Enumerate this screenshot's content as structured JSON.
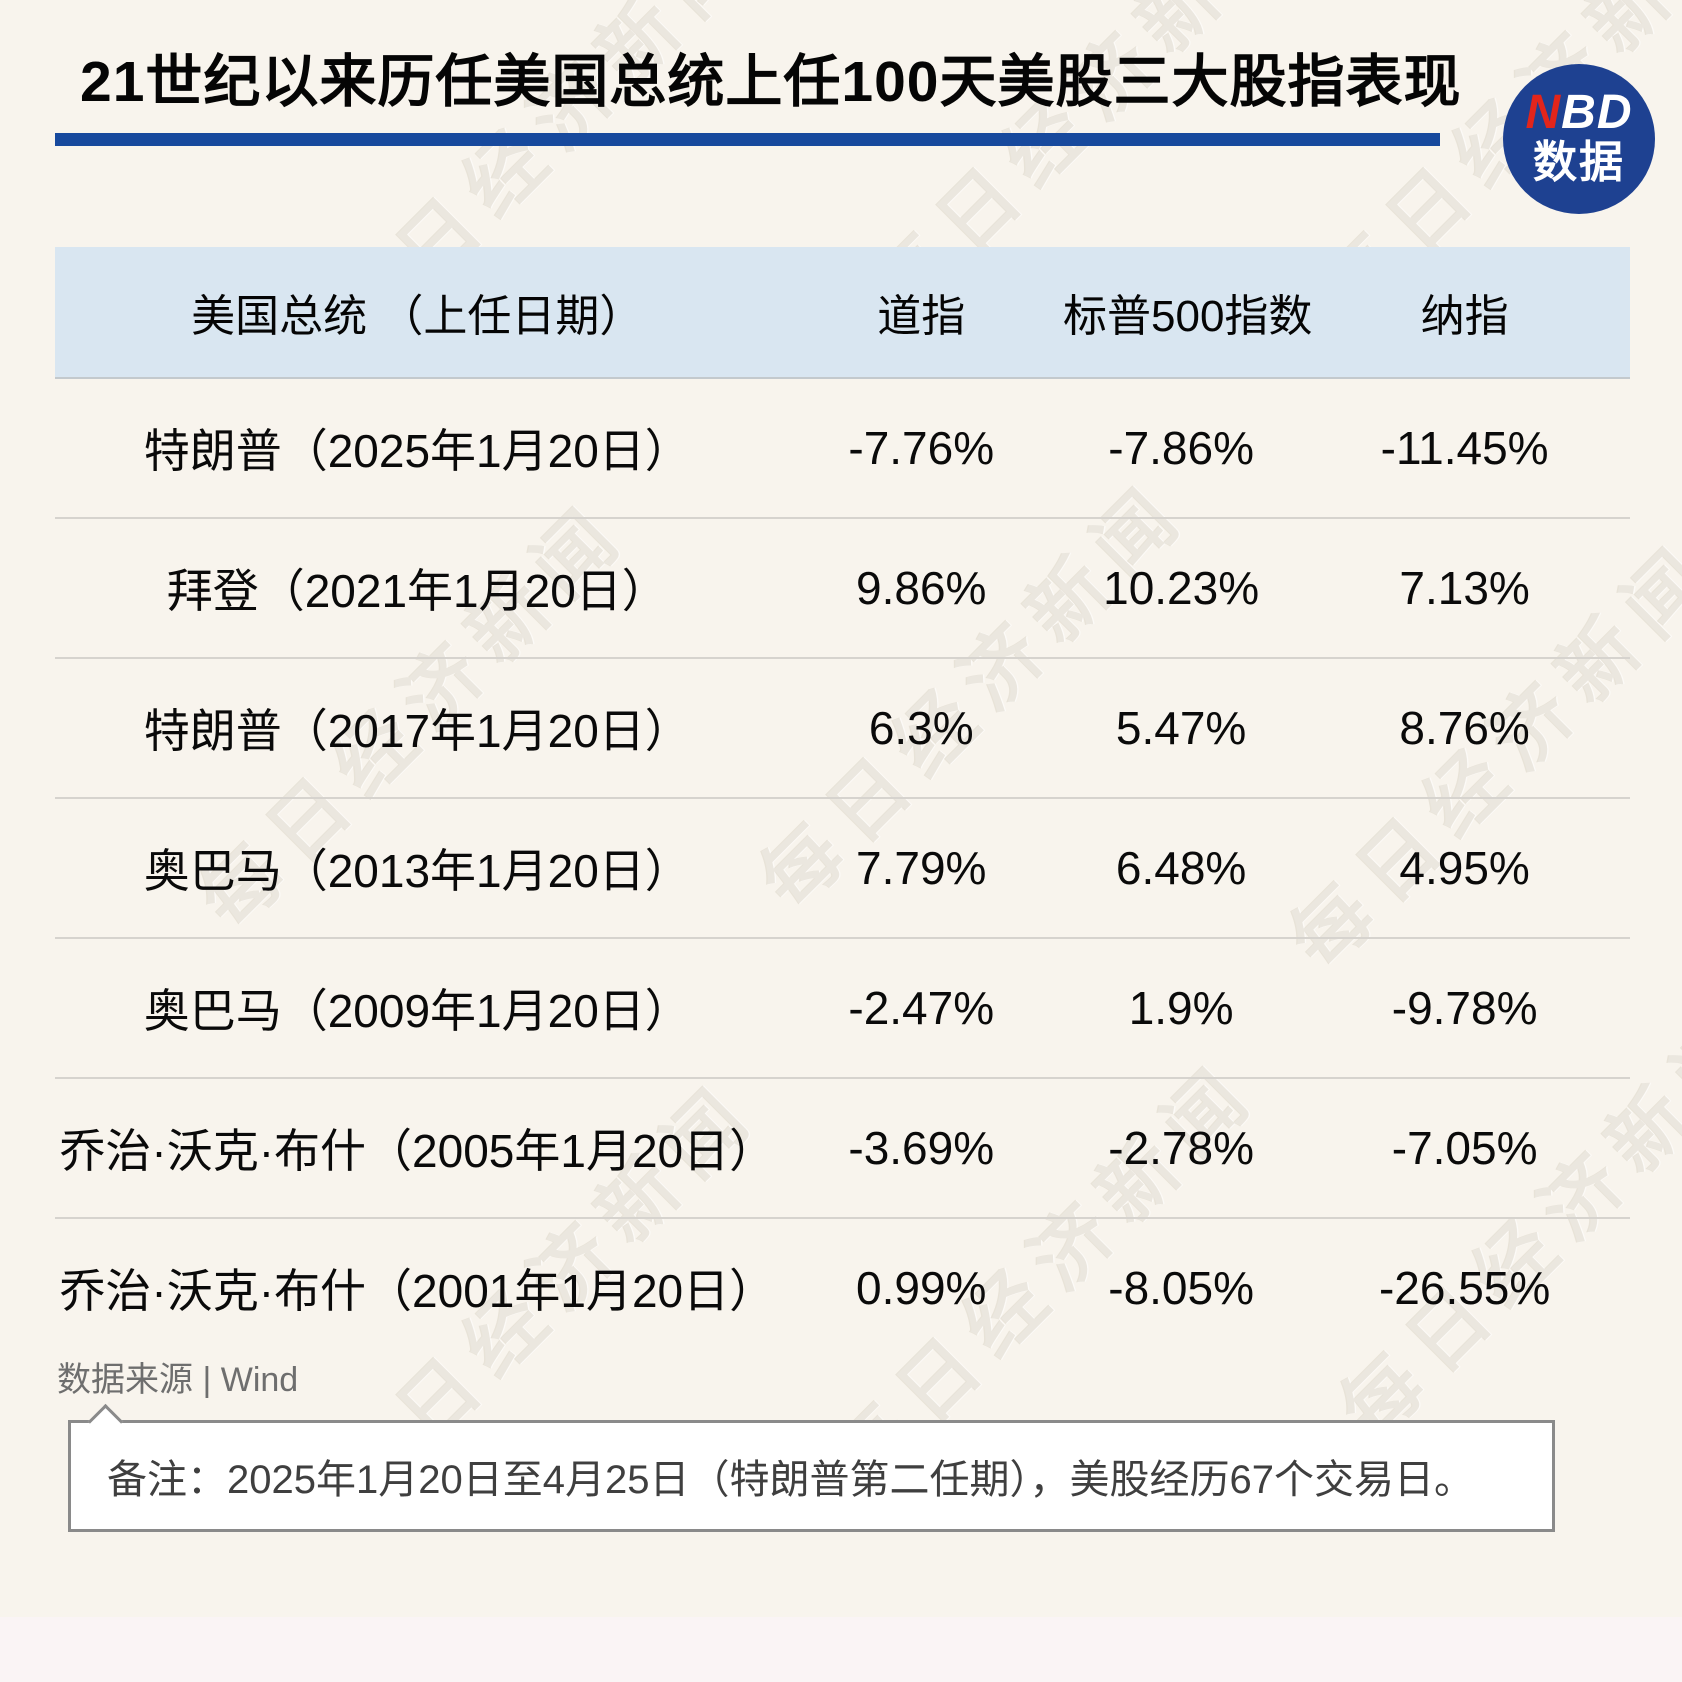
{
  "page": {
    "title": "21世纪以来历任美国总统上任100天美股三大股指表现",
    "watermark_text": "每日经济新闻"
  },
  "logo": {
    "red_letter": "N",
    "white_letters": "BD",
    "subtitle": "数据"
  },
  "table": {
    "headers": {
      "president": "美国总统 （上任日期）",
      "dow": "道指",
      "sp500": "标普500指数",
      "nasdaq": "纳指"
    },
    "rows": [
      {
        "president": "特朗普（2025年1月20日）",
        "dow": "-7.76%",
        "sp500": "-7.86%",
        "nasdaq": "-11.45%"
      },
      {
        "president": "拜登（2021年1月20日）",
        "dow": "9.86%",
        "sp500": "10.23%",
        "nasdaq": "7.13%"
      },
      {
        "president": "特朗普（2017年1月20日）",
        "dow": "6.3%",
        "sp500": "5.47%",
        "nasdaq": "8.76%"
      },
      {
        "president": "奥巴马（2013年1月20日）",
        "dow": "7.79%",
        "sp500": "6.48%",
        "nasdaq": "4.95%"
      },
      {
        "president": "奥巴马（2009年1月20日）",
        "dow": "-2.47%",
        "sp500": "1.9%",
        "nasdaq": "-9.78%"
      },
      {
        "president": "乔治·沃克·布什（2005年1月20日）",
        "dow": "-3.69%",
        "sp500": "-2.78%",
        "nasdaq": "-7.05%"
      },
      {
        "president": "乔治·沃克·布什（2001年1月20日）",
        "dow": "0.99%",
        "sp500": "-8.05%",
        "nasdaq": "-26.55%"
      }
    ]
  },
  "source": {
    "text": "数据来源 | Wind"
  },
  "note": {
    "text": "备注：2025年1月20日至4月25日（特朗普第二任期），美股经历67个交易日。"
  },
  "colors": {
    "background": "#f8f4ed",
    "title_rule_blue": "#17499d",
    "logo_blue": "#1e4191",
    "logo_red": "#e2251b",
    "header_row_bg": "#d9e6f1",
    "divider_gray": "#d6d3ce",
    "source_gray": "#6e6e6e",
    "note_border_gray": "#8a8a8a"
  },
  "chart_data": {
    "type": "table",
    "title": "21世纪以来历任美国总统上任100天美股三大股指表现",
    "columns": [
      "美国总统（上任日期）",
      "道指",
      "标普500指数",
      "纳指"
    ],
    "unit": "%",
    "rows": [
      {
        "president": "特朗普",
        "inauguration": "2025年1月20日",
        "dow": -7.76,
        "sp500": -7.86,
        "nasdaq": -11.45
      },
      {
        "president": "拜登",
        "inauguration": "2021年1月20日",
        "dow": 9.86,
        "sp500": 10.23,
        "nasdaq": 7.13
      },
      {
        "president": "特朗普",
        "inauguration": "2017年1月20日",
        "dow": 6.3,
        "sp500": 5.47,
        "nasdaq": 8.76
      },
      {
        "president": "奥巴马",
        "inauguration": "2013年1月20日",
        "dow": 7.79,
        "sp500": 6.48,
        "nasdaq": 4.95
      },
      {
        "president": "奥巴马",
        "inauguration": "2009年1月20日",
        "dow": -2.47,
        "sp500": 1.9,
        "nasdaq": -9.78
      },
      {
        "president": "乔治·沃克·布什",
        "inauguration": "2005年1月20日",
        "dow": -3.69,
        "sp500": -2.78,
        "nasdaq": -7.05
      },
      {
        "president": "乔治·沃克·布什",
        "inauguration": "2001年1月20日",
        "dow": 0.99,
        "sp500": -8.05,
        "nasdaq": -26.55
      }
    ],
    "source": "Wind",
    "note": "2025年1月20日至4月25日（特朗普第二任期），美股经历67个交易日。"
  }
}
